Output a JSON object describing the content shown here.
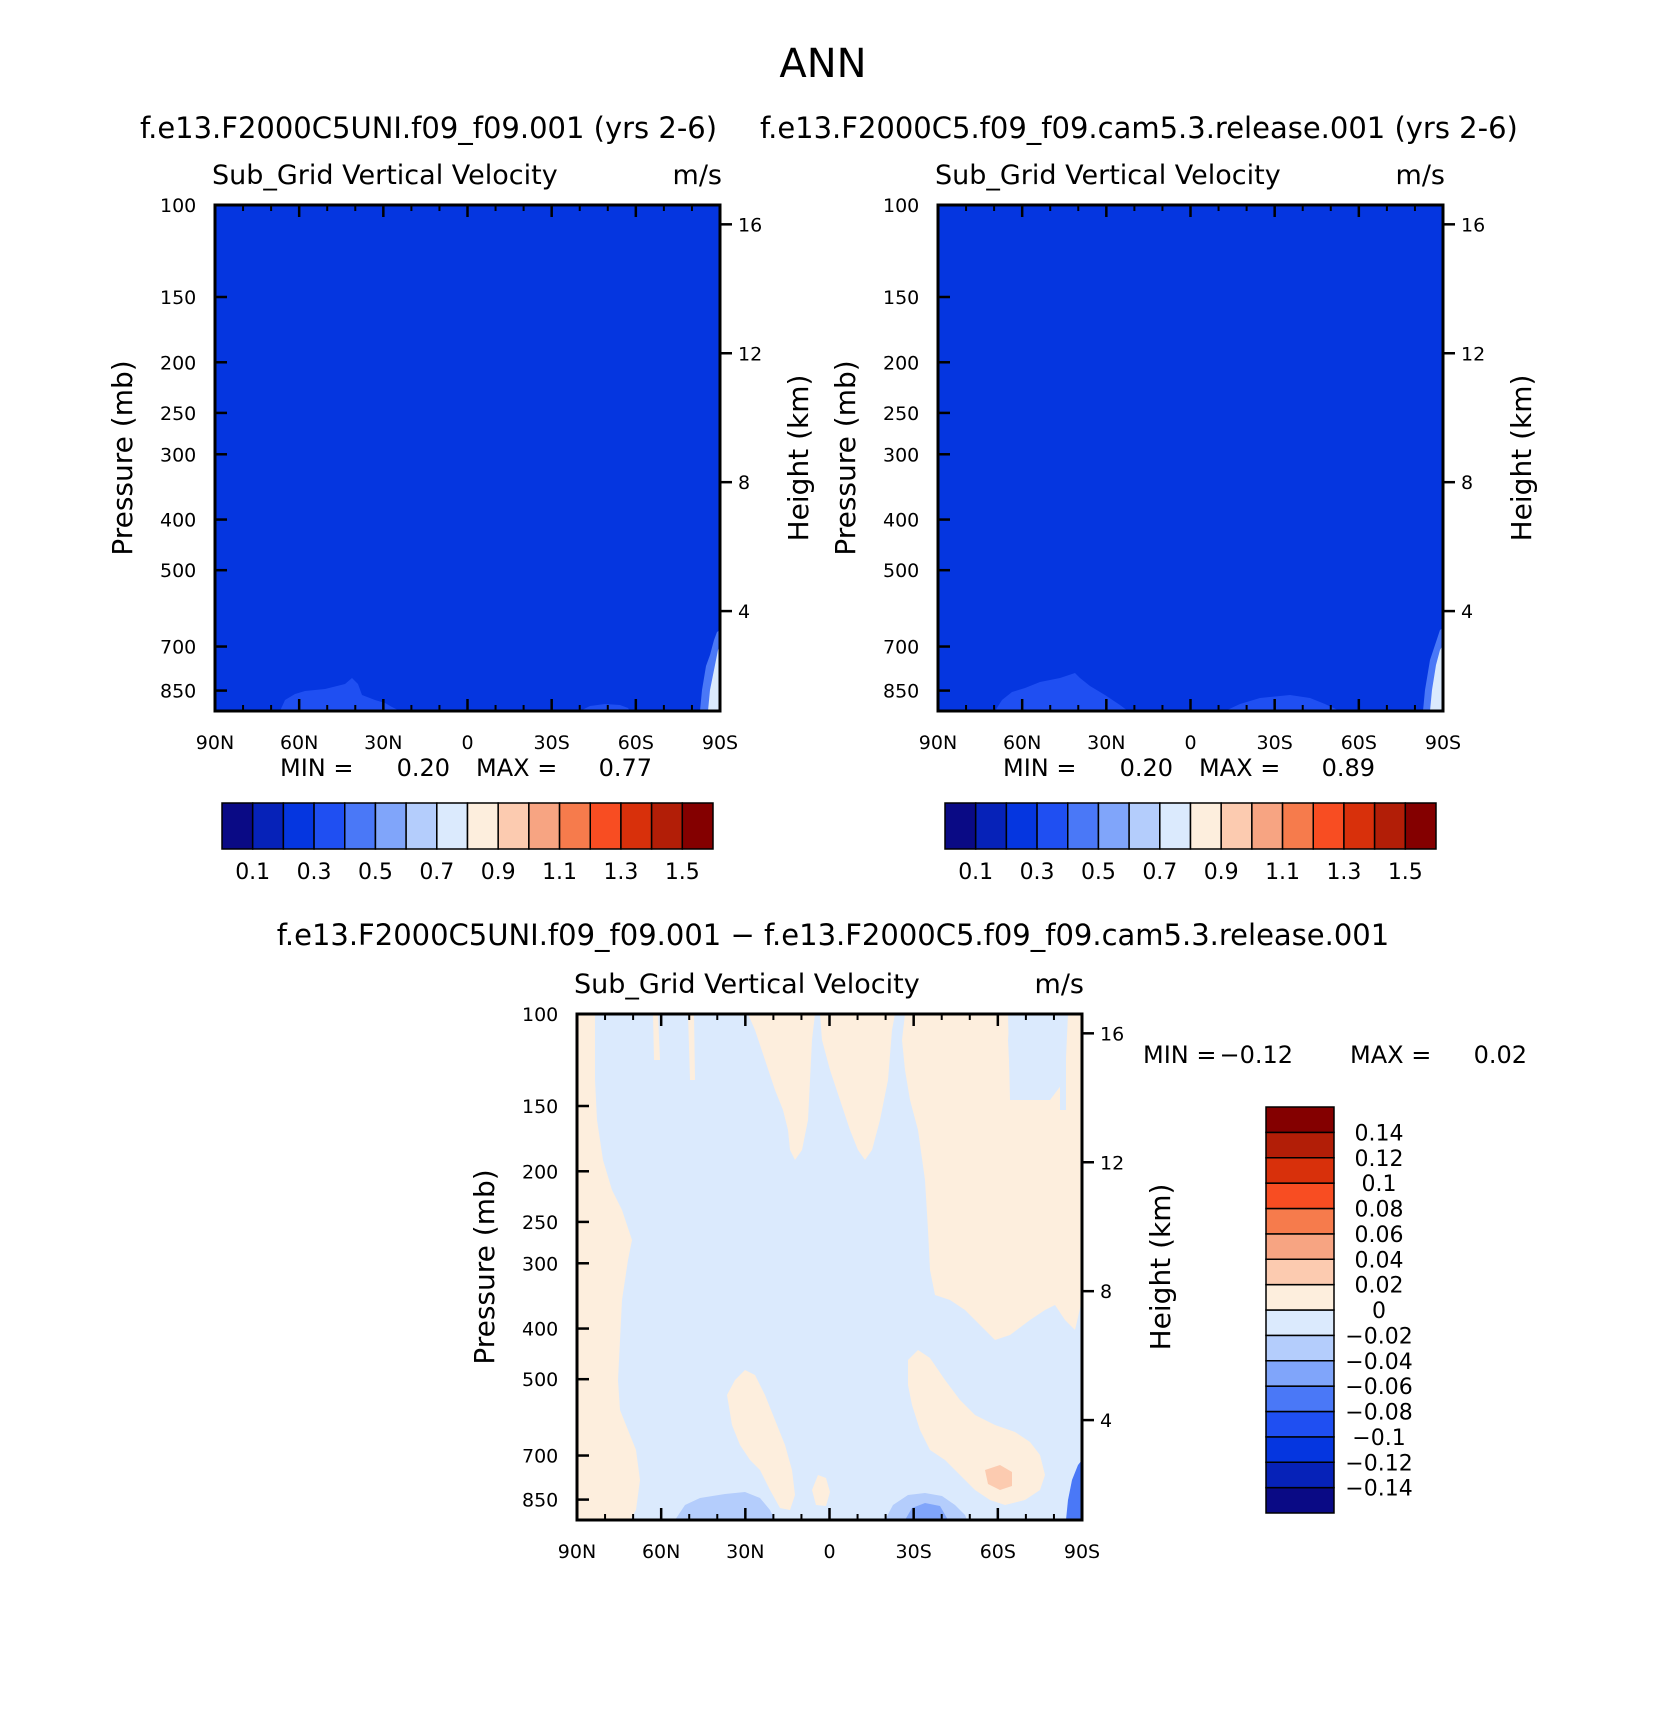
{
  "figure": {
    "title": "ANN",
    "panel_a_case": "f.e13.F2000C5UNI.f09_f09.001 (yrs 2-6)",
    "panel_b_case": "f.e13.F2000C5.f09_f09.cam5.3.release.001 (yrs 2-6)",
    "diff_case": "f.e13.F2000C5UNI.f09_f09.001 − f.e13.F2000C5.f09_f09.cam5.3.release.001"
  },
  "chart_data": [
    {
      "type": "heatmap",
      "title": "Sub_Grid Vertical Velocity",
      "units": "m/s",
      "xlabel": "",
      "ylabel": "Pressure (mb)",
      "y2label": "Height (km)",
      "x_ticks": [
        "90N",
        "60N",
        "30N",
        "0",
        "30S",
        "60S",
        "90S"
      ],
      "y_ticks": [
        100,
        150,
        200,
        250,
        300,
        400,
        500,
        700,
        850
      ],
      "y2_ticks": [
        16,
        12,
        8,
        4
      ],
      "stats": {
        "min_label": "MIN =",
        "min": "0.20",
        "max_label": "MAX =",
        "max": "0.77"
      },
      "colorbar": {
        "colors": [
          "#0a0a85",
          "#0622b8",
          "#0536e0",
          "#1f4ff2",
          "#4a78f7",
          "#80a5fa",
          "#b4cdfc",
          "#dbeafd",
          "#fdeedd",
          "#fccbb0",
          "#f7a482",
          "#f67b4c",
          "#f84d22",
          "#d8300b",
          "#b21e07",
          "#840000"
        ],
        "labels": [
          "0.1",
          "0.3",
          "0.5",
          "0.7",
          "0.9",
          "1.1",
          "1.3",
          "1.5"
        ],
        "orientation": "horizontal"
      },
      "field": "uniform ~0.2 m/s throughout (0.2–0.3 band), slightly higher 0.3–0.4 near surface at 60N–30N and at 90S"
    },
    {
      "type": "heatmap",
      "title": "Sub_Grid Vertical Velocity",
      "units": "m/s",
      "xlabel": "",
      "ylabel": "Pressure (mb)",
      "y2label": "Height (km)",
      "x_ticks": [
        "90N",
        "60N",
        "30N",
        "0",
        "30S",
        "60S",
        "90S"
      ],
      "y_ticks": [
        100,
        150,
        200,
        250,
        300,
        400,
        500,
        700,
        850
      ],
      "y2_ticks": [
        16,
        12,
        8,
        4
      ],
      "stats": {
        "min_label": "MIN =",
        "min": "0.20",
        "max_label": "MAX =",
        "max": "0.89"
      },
      "colorbar": {
        "colors": [
          "#0a0a85",
          "#0622b8",
          "#0536e0",
          "#1f4ff2",
          "#4a78f7",
          "#80a5fa",
          "#b4cdfc",
          "#dbeafd",
          "#fdeedd",
          "#fccbb0",
          "#f7a482",
          "#f67b4c",
          "#f84d22",
          "#d8300b",
          "#b21e07",
          "#840000"
        ],
        "labels": [
          "0.1",
          "0.3",
          "0.5",
          "0.7",
          "0.9",
          "1.1",
          "1.3",
          "1.5"
        ],
        "orientation": "horizontal"
      },
      "field": "uniform ~0.2 m/s throughout, slightly higher near surface at 60N–30N and 30S–60S, higher at 90S"
    },
    {
      "type": "heatmap",
      "title": "Sub_Grid Vertical Velocity",
      "units": "m/s",
      "xlabel": "",
      "ylabel": "Pressure (mb)",
      "y2label": "Height (km)",
      "x_ticks": [
        "90N",
        "60N",
        "30N",
        "0",
        "30S",
        "60S",
        "90S"
      ],
      "y_ticks": [
        100,
        150,
        200,
        250,
        300,
        400,
        500,
        700,
        850
      ],
      "y2_ticks": [
        16,
        12,
        8,
        4
      ],
      "stats": {
        "min_label": "MIN =",
        "min": "−0.12",
        "max_label": "MAX =",
        "max": "0.02"
      },
      "colorbar": {
        "colors": [
          "#0a0a85",
          "#0622b8",
          "#0536e0",
          "#1f4ff2",
          "#4a78f7",
          "#80a5fa",
          "#b4cdfc",
          "#dbeafd",
          "#fdeedd",
          "#fccbb0",
          "#f7a482",
          "#f67b4c",
          "#f84d22",
          "#d8300b",
          "#b21e07",
          "#840000"
        ],
        "labels": [
          "0.14",
          "0.12",
          "0.1",
          "0.08",
          "0.06",
          "0.04",
          "0.02",
          "0",
          "−0.02",
          "−0.04",
          "−0.06",
          "−0.08",
          "−0.1",
          "−0.12",
          "−0.14"
        ],
        "orientation": "vertical"
      },
      "field": "mostly −0.02–0 (light blue) with 0–0.02 (light orange) regions: 90N–75N column, band near 30N–15N at top, 0–30S upper, 30S–90S upper and mid, 60S low-level max 0.02–0.04; small −0.02 to −0.06 patches near surface"
    }
  ]
}
